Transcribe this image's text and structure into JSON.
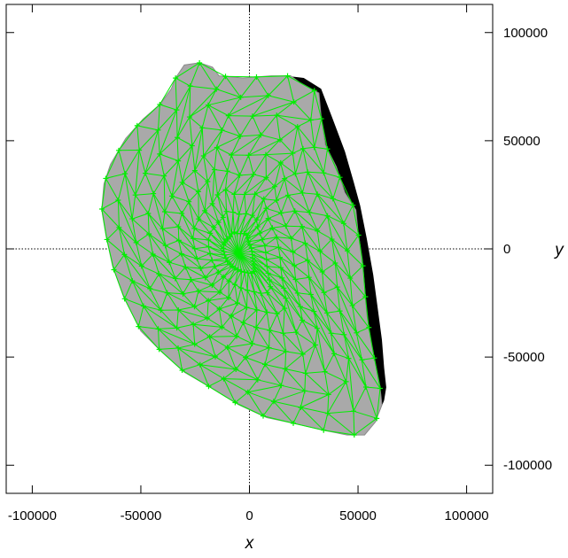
{
  "chart_data": {
    "type": "scatter",
    "title": "",
    "xlabel": "x",
    "ylabel": "y",
    "xlim": [
      -112000,
      112000
    ],
    "ylim": [
      -113000,
      113000
    ],
    "x_ticks": [
      -100000,
      -50000,
      0,
      50000,
      100000
    ],
    "y_ticks": [
      -100000,
      -50000,
      0,
      50000,
      100000
    ],
    "x_tick_labels": [
      "-100000",
      "-50000",
      "0",
      "50000",
      "100000"
    ],
    "y_tick_labels": [
      "-100000",
      "-50000",
      "0",
      "50000",
      "100000"
    ],
    "zero_lines": "dotted",
    "colors": {
      "body": "#a9a9a9",
      "shadow": "#000000",
      "mesh": "#00ee00"
    },
    "shadow_outline": [
      [
        17000,
        80000
      ],
      [
        25000,
        79000
      ],
      [
        33000,
        74000
      ],
      [
        38000,
        61000
      ],
      [
        44000,
        45000
      ],
      [
        48000,
        31000
      ],
      [
        51000,
        20000
      ],
      [
        54000,
        5000
      ],
      [
        57000,
        -12000
      ],
      [
        59000,
        -27000
      ],
      [
        61000,
        -42000
      ],
      [
        62000,
        -55000
      ],
      [
        63000,
        -64000
      ],
      [
        62000,
        -70000
      ],
      [
        58000,
        -80000
      ],
      [
        40000,
        -72000
      ],
      [
        30000,
        -40000
      ],
      [
        20000,
        0
      ],
      [
        12000,
        40000
      ],
      [
        10000,
        70000
      ]
    ],
    "body_outline": [
      [
        -23000,
        86000
      ],
      [
        -17000,
        84000
      ],
      [
        -14000,
        80000
      ],
      [
        -3000,
        79000
      ],
      [
        10000,
        80000
      ],
      [
        19000,
        80000
      ],
      [
        23000,
        77000
      ],
      [
        32000,
        72000
      ],
      [
        33000,
        61000
      ],
      [
        35000,
        48000
      ],
      [
        40000,
        38000
      ],
      [
        44000,
        26000
      ],
      [
        49000,
        18000
      ],
      [
        50000,
        8000
      ],
      [
        52000,
        -5000
      ],
      [
        53000,
        -17000
      ],
      [
        54000,
        -30000
      ],
      [
        56000,
        -43000
      ],
      [
        58000,
        -53000
      ],
      [
        60000,
        -63000
      ],
      [
        61000,
        -72000
      ],
      [
        58000,
        -80000
      ],
      [
        53000,
        -86000
      ],
      [
        45000,
        -86000
      ],
      [
        35000,
        -84000
      ],
      [
        22000,
        -81000
      ],
      [
        8000,
        -78000
      ],
      [
        -5000,
        -72000
      ],
      [
        -18000,
        -64000
      ],
      [
        -30000,
        -57000
      ],
      [
        -40000,
        -48000
      ],
      [
        -50000,
        -38000
      ],
      [
        -58000,
        -22000
      ],
      [
        -63000,
        -8000
      ],
      [
        -66000,
        6000
      ],
      [
        -68000,
        18000
      ],
      [
        -67000,
        30000
      ],
      [
        -64000,
        39000
      ],
      [
        -57000,
        51000
      ],
      [
        -49000,
        60000
      ],
      [
        -41000,
        67000
      ],
      [
        -36000,
        74000
      ],
      [
        -34000,
        79000
      ],
      [
        -30000,
        85000
      ]
    ],
    "mesh_rings": 9,
    "mesh_points_per_ring": 34
  }
}
